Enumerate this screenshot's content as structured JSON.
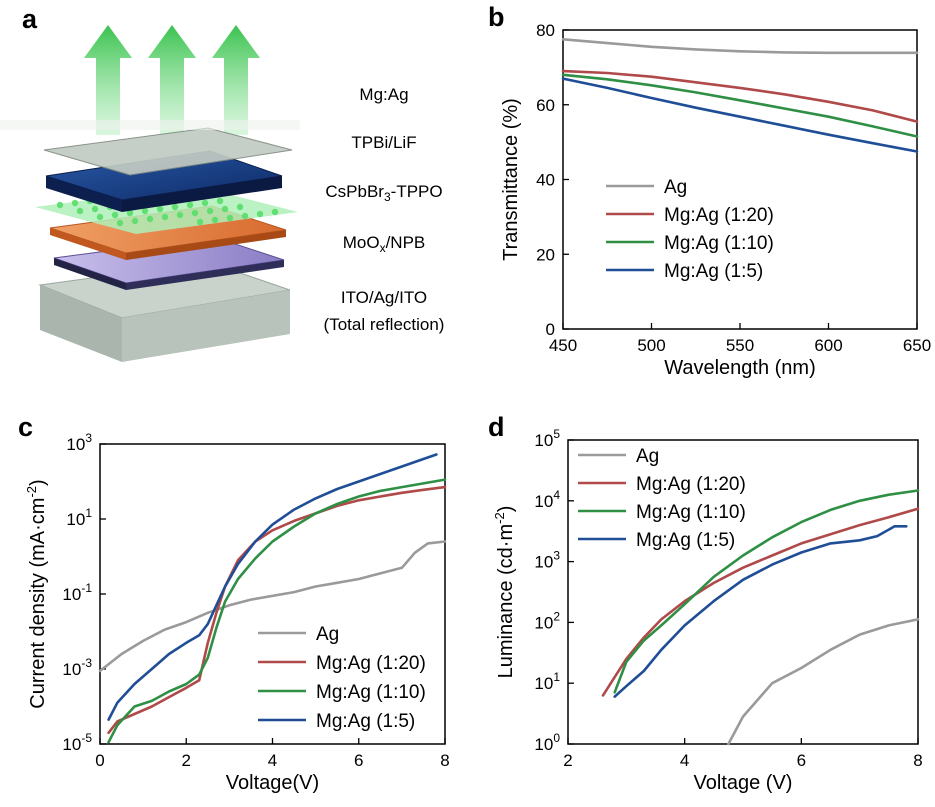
{
  "panels": {
    "a": {
      "label": "a",
      "layers": [
        {
          "text": "Mg:Ag"
        },
        {
          "text": "TPBi/LiF"
        },
        {
          "text": "CsPbBr",
          "sub": "3",
          "suffix": "-TPPO"
        },
        {
          "text": "MoO",
          "sub": "x",
          "suffix": "/NPB"
        },
        {
          "text": "ITO/Ag/ITO",
          "line2": "(Total reflection)"
        }
      ],
      "colors": {
        "arrow": "#5bd36b",
        "glass": "#c9d3cb",
        "eml": "#1d3f86",
        "dots": "#59dd6b",
        "htl": "#e07a3c",
        "ito": "#9d8fcf"
      }
    }
  },
  "chart_data": [
    {
      "panel": "b",
      "type": "line",
      "title": "",
      "xlabel": "Wavelength (nm)",
      "ylabel": "Transmittance (%)",
      "xlim": [
        450,
        650
      ],
      "ylim": [
        0,
        80
      ],
      "xticks": [
        450,
        500,
        550,
        600,
        650
      ],
      "yticks": [
        0,
        20,
        40,
        60,
        80
      ],
      "legend_position": "bottom-left",
      "series": [
        {
          "name": "Ag",
          "color": "#9a9a9a",
          "x": [
            450,
            475,
            500,
            525,
            550,
            575,
            600,
            625,
            650
          ],
          "y": [
            77.5,
            76.5,
            75.5,
            74.8,
            74.3,
            74.0,
            73.9,
            73.9,
            73.9
          ]
        },
        {
          "name": "Mg:Ag (1:20)",
          "color": "#b04a4a",
          "x": [
            450,
            475,
            500,
            525,
            550,
            575,
            600,
            625,
            650
          ],
          "y": [
            69.0,
            68.5,
            67.5,
            66.0,
            64.5,
            62.8,
            60.8,
            58.5,
            55.5
          ]
        },
        {
          "name": "Mg:Ag (1:10)",
          "color": "#2f8f45",
          "x": [
            450,
            475,
            500,
            525,
            550,
            575,
            600,
            625,
            650
          ],
          "y": [
            68.0,
            66.8,
            65.2,
            63.3,
            61.2,
            59.0,
            56.8,
            54.2,
            51.5
          ]
        },
        {
          "name": "Mg:Ag (1:5)",
          "color": "#1f4e96",
          "x": [
            450,
            475,
            500,
            525,
            550,
            575,
            600,
            625,
            650
          ],
          "y": [
            67.0,
            64.5,
            61.8,
            59.2,
            56.8,
            54.4,
            52.0,
            49.7,
            47.5
          ]
        }
      ]
    },
    {
      "panel": "c",
      "type": "line",
      "title": "",
      "xlabel": "Voltage(V)",
      "ylabel": "Current density (mA·cm",
      "ylabel_sup": "-2",
      "ylabel_suffix": ")",
      "yscale": "log",
      "xlim": [
        0,
        8
      ],
      "ylim": [
        -5,
        3
      ],
      "xticks": [
        0,
        2,
        4,
        6,
        8
      ],
      "yticks": [
        {
          "base": "10",
          "exp": "-5",
          "value": -5
        },
        {
          "base": "10",
          "exp": "-3",
          "value": -3
        },
        {
          "base": "10",
          "exp": "-1",
          "value": -1
        },
        {
          "base": "10",
          "exp": "1",
          "value": 1
        },
        {
          "base": "10",
          "exp": "3",
          "value": 3
        }
      ],
      "legend_position": "bottom-right",
      "series": [
        {
          "name": "Ag",
          "color": "#9a9a9a",
          "x": [
            0,
            0.5,
            1.0,
            1.5,
            2.0,
            2.5,
            3.0,
            3.5,
            4.0,
            4.5,
            5.0,
            5.5,
            6.0,
            6.5,
            7.0,
            7.3,
            7.6,
            8.0
          ],
          "y": [
            -3.05,
            -2.6,
            -2.25,
            -1.95,
            -1.75,
            -1.5,
            -1.3,
            -1.15,
            -1.05,
            -0.95,
            -0.8,
            -0.7,
            -0.6,
            -0.45,
            -0.3,
            0.1,
            0.35,
            0.4
          ]
        },
        {
          "name": "Mg:Ag (1:20)",
          "color": "#b04a4a",
          "x": [
            0.2,
            0.4,
            0.8,
            1.2,
            1.6,
            2.0,
            2.3,
            2.5,
            2.7,
            2.9,
            3.2,
            3.6,
            4.0,
            4.5,
            5.0,
            5.5,
            6.0,
            6.5,
            7.0,
            7.5,
            8.0
          ],
          "y": [
            -4.7,
            -4.4,
            -4.2,
            -4.0,
            -3.75,
            -3.5,
            -3.3,
            -2.3,
            -1.5,
            -0.8,
            -0.1,
            0.4,
            0.7,
            0.95,
            1.15,
            1.35,
            1.5,
            1.6,
            1.7,
            1.78,
            1.85
          ]
        },
        {
          "name": "Mg:Ag (1:10)",
          "color": "#2f8f45",
          "x": [
            0.2,
            0.4,
            0.8,
            1.2,
            1.6,
            2.0,
            2.3,
            2.5,
            2.7,
            2.9,
            3.2,
            3.6,
            4.0,
            4.5,
            5.0,
            5.5,
            6.0,
            6.5,
            7.0,
            7.5,
            8.0
          ],
          "y": [
            -4.95,
            -4.5,
            -4.0,
            -3.85,
            -3.6,
            -3.4,
            -3.15,
            -2.7,
            -1.9,
            -1.2,
            -0.6,
            -0.05,
            0.4,
            0.8,
            1.15,
            1.4,
            1.6,
            1.75,
            1.85,
            1.95,
            2.05
          ]
        },
        {
          "name": "Mg:Ag (1:5)",
          "color": "#1f4e96",
          "x": [
            0.2,
            0.4,
            0.8,
            1.2,
            1.6,
            2.0,
            2.3,
            2.5,
            2.7,
            2.9,
            3.2,
            3.6,
            4.0,
            4.5,
            5.0,
            5.5,
            6.0,
            6.5,
            7.0,
            7.5,
            7.8
          ],
          "y": [
            -4.35,
            -3.9,
            -3.4,
            -3.0,
            -2.6,
            -2.3,
            -2.1,
            -1.8,
            -1.3,
            -0.8,
            -0.2,
            0.4,
            0.85,
            1.25,
            1.55,
            1.8,
            2.0,
            2.2,
            2.4,
            2.6,
            2.72
          ]
        }
      ]
    },
    {
      "panel": "d",
      "type": "line",
      "title": "",
      "xlabel": "Voltage (V)",
      "ylabel": "Luminance (cd·m",
      "ylabel_sup": "-2",
      "ylabel_suffix": ")",
      "yscale": "log",
      "xlim": [
        2,
        8
      ],
      "ylim": [
        0,
        5
      ],
      "xticks": [
        2,
        4,
        6,
        8
      ],
      "yticks": [
        {
          "base": "10",
          "exp": "0",
          "value": 0
        },
        {
          "base": "10",
          "exp": "1",
          "value": 1
        },
        {
          "base": "10",
          "exp": "2",
          "value": 2
        },
        {
          "base": "10",
          "exp": "3",
          "value": 3
        },
        {
          "base": "10",
          "exp": "4",
          "value": 4
        },
        {
          "base": "10",
          "exp": "5",
          "value": 5
        }
      ],
      "legend_position": "top-left",
      "series": [
        {
          "name": "Ag",
          "color": "#9a9a9a",
          "x": [
            4.75,
            5.0,
            5.5,
            6.0,
            6.5,
            7.0,
            7.5,
            8.0
          ],
          "y": [
            0.0,
            0.45,
            1.0,
            1.25,
            1.55,
            1.8,
            1.95,
            2.05
          ]
        },
        {
          "name": "Mg:Ag (1:20)",
          "color": "#b04a4a",
          "x": [
            2.6,
            2.8,
            3.0,
            3.3,
            3.6,
            4.0,
            4.5,
            5.0,
            5.5,
            6.0,
            6.5,
            7.0,
            7.5,
            8.0
          ],
          "y": [
            0.8,
            1.1,
            1.4,
            1.75,
            2.05,
            2.35,
            2.65,
            2.9,
            3.1,
            3.3,
            3.45,
            3.6,
            3.73,
            3.87
          ]
        },
        {
          "name": "Mg:Ag (1:10)",
          "color": "#2f8f45",
          "x": [
            2.8,
            3.0,
            3.3,
            3.6,
            4.0,
            4.5,
            5.0,
            5.5,
            6.0,
            6.5,
            7.0,
            7.5,
            8.0
          ],
          "y": [
            0.85,
            1.35,
            1.7,
            1.95,
            2.3,
            2.75,
            3.1,
            3.4,
            3.65,
            3.85,
            4.0,
            4.1,
            4.17
          ]
        },
        {
          "name": "Mg:Ag (1:5)",
          "color": "#1f4e96",
          "x": [
            2.8,
            3.0,
            3.3,
            3.6,
            4.0,
            4.5,
            5.0,
            5.5,
            6.0,
            6.5,
            7.0,
            7.3,
            7.6,
            7.8
          ],
          "y": [
            0.78,
            0.95,
            1.2,
            1.55,
            1.95,
            2.35,
            2.7,
            2.95,
            3.15,
            3.3,
            3.35,
            3.42,
            3.58,
            3.58
          ]
        }
      ]
    }
  ]
}
